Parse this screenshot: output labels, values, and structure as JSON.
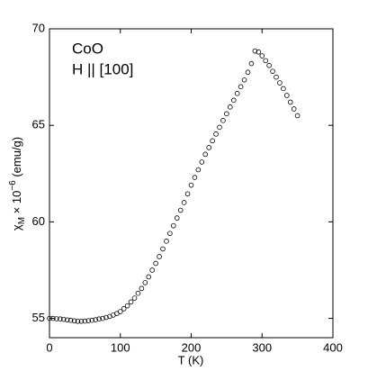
{
  "chart_data": {
    "type": "scatter",
    "annotations": [
      "CoO",
      "H || [100]"
    ],
    "xlabel": "T (K)",
    "ylabel": [
      "χ",
      "M",
      " × 10",
      "−6",
      " (emu/g)"
    ],
    "x": [
      0,
      5,
      10,
      15,
      20,
      25,
      30,
      35,
      40,
      45,
      50,
      55,
      60,
      65,
      70,
      75,
      80,
      85,
      90,
      95,
      100,
      105,
      110,
      115,
      120,
      125,
      130,
      135,
      140,
      145,
      150,
      155,
      160,
      165,
      170,
      175,
      180,
      185,
      190,
      195,
      200,
      205,
      210,
      215,
      220,
      225,
      230,
      235,
      240,
      245,
      250,
      255,
      260,
      265,
      270,
      275,
      280,
      285,
      290,
      295,
      300,
      305,
      310,
      315,
      320,
      325,
      330,
      335,
      340,
      345,
      350
    ],
    "values": [
      55.0,
      55.0,
      54.98,
      54.97,
      54.95,
      54.92,
      54.9,
      54.87,
      54.85,
      54.85,
      54.86,
      54.88,
      54.9,
      54.93,
      54.97,
      55.0,
      55.05,
      55.1,
      55.17,
      55.25,
      55.35,
      55.5,
      55.65,
      55.85,
      56.05,
      56.3,
      56.55,
      56.85,
      57.15,
      57.5,
      57.85,
      58.2,
      58.6,
      59.0,
      59.4,
      59.8,
      60.2,
      60.6,
      61.0,
      61.45,
      61.9,
      62.3,
      62.7,
      63.1,
      63.5,
      63.85,
      64.2,
      64.55,
      64.9,
      65.25,
      65.6,
      65.95,
      66.3,
      66.65,
      67.0,
      67.35,
      67.75,
      68.2,
      68.85,
      68.8,
      68.6,
      68.35,
      68.1,
      67.8,
      67.5,
      67.2,
      66.9,
      66.55,
      66.2,
      65.85,
      65.5
    ],
    "color": "#000000",
    "xlim": [
      0,
      400
    ],
    "xticks": [
      0,
      100,
      200,
      300,
      400
    ],
    "ylim": [
      54,
      70
    ],
    "yticks": [
      55,
      60,
      65,
      70
    ],
    "grid": false
  }
}
